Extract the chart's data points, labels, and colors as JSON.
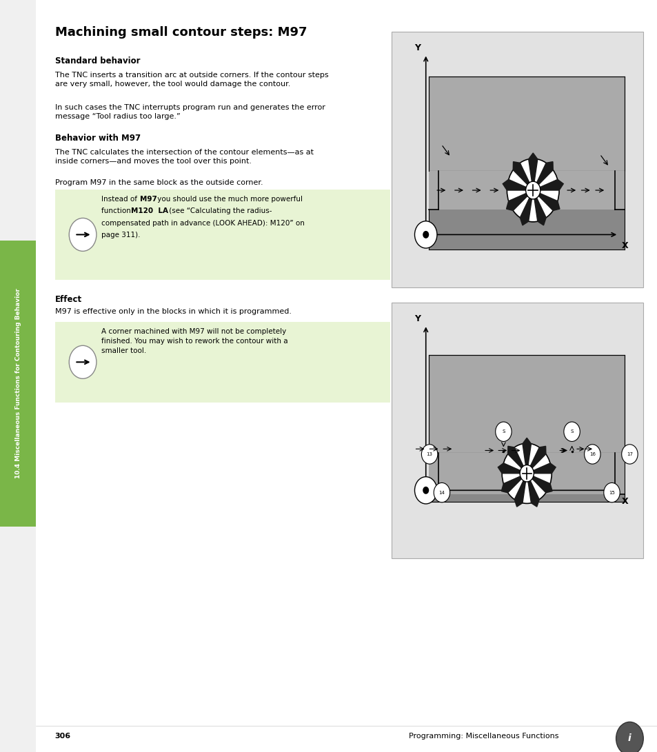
{
  "page_bg": "#f0f0f0",
  "title": "Machining small contour steps: M97",
  "sidebar_text": "10.4 Miscellaneous Functions for Contouring Behavior",
  "sidebar_bg": "#7ab648",
  "body_bg": "#ffffff",
  "note_bg1": "#e8f4d4",
  "note_bg2": "#e8f4d4",
  "page_number": "306",
  "footer_right": "Programming: Miscellaneous Functions",
  "section_label1": "Standard behavior",
  "section_label2": "Behavior with M97",
  "section_label3": "Effect",
  "body_text1": "The TNC inserts a transition arc at outside corners. If the contour steps\nare very small, however, the tool would damage the contour.",
  "body_text2": "In such cases the TNC interrupts program run and generates the error\nmessage “Tool radius too large.”",
  "body_text3": "The TNC calculates the intersection of the contour elements—as at\ninside corners—and moves the tool over this point.",
  "body_text4": "Program M97 in the same block as the outside corner.",
  "note_text2": "A corner machined with M97 will not be completely\nfinished. You may wish to rework the contour with a\nsmaller tool.",
  "effect_text": "M97 is effective only in the blocks in which it is programmed."
}
